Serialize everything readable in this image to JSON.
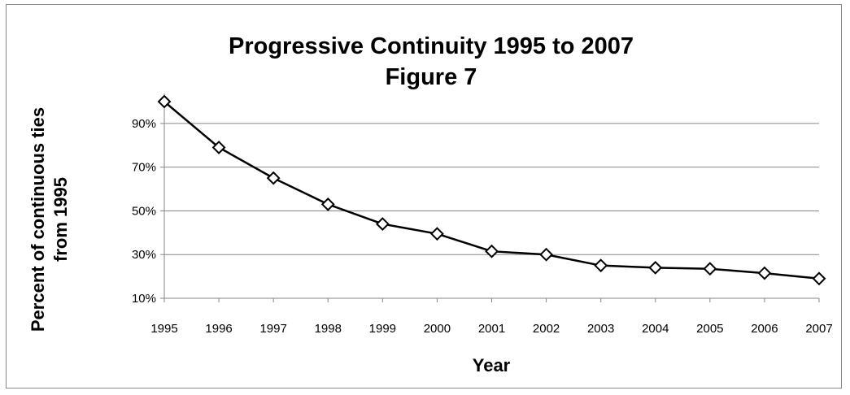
{
  "chart_data": {
    "type": "line",
    "title_lines": [
      "Progressive Continuity  1995 to 2007",
      "Figure 7"
    ],
    "xlabel": "Year",
    "ylabel_lines": [
      "Percent of continuous ties",
      "from 1995"
    ],
    "categories": [
      "1995",
      "1996",
      "1997",
      "1998",
      "1999",
      "2000",
      "2001",
      "2002",
      "2003",
      "2004",
      "2005",
      "2006",
      "2007"
    ],
    "series": [
      {
        "values": [
          1.0,
          0.79,
          0.65,
          0.53,
          0.44,
          0.395,
          0.315,
          0.3,
          0.25,
          0.24,
          0.235,
          0.215,
          0.19
        ]
      }
    ],
    "ylim": [
      0.1,
      1.0
    ],
    "ytick_values": [
      0.1,
      0.3,
      0.5,
      0.7,
      0.9
    ],
    "ytick_labels": [
      "10%",
      "30%",
      "50%",
      "70%",
      "90%"
    ],
    "grid": true,
    "marker": "diamond",
    "line_color": "#000000",
    "grid_color": "#868686"
  }
}
